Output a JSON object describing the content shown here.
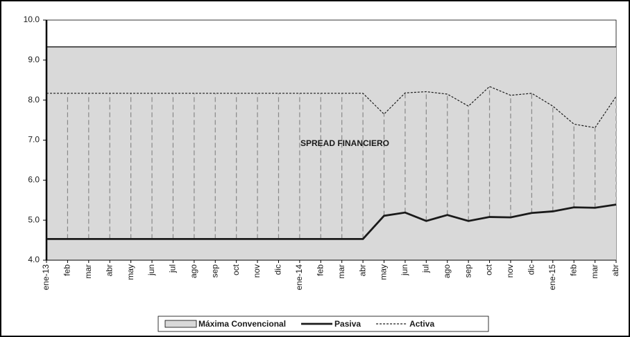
{
  "chart_data": {
    "type": "line",
    "annotation": "SPREAD FINANCIERO",
    "categories": [
      "ene-13",
      "feb",
      "mar",
      "abr",
      "may",
      "jun",
      "jul",
      "ago",
      "sep",
      "oct",
      "nov",
      "dic",
      "ene-14",
      "feb",
      "mar",
      "abr",
      "may",
      "jun",
      "jul",
      "ago",
      "sep",
      "oct",
      "nov",
      "dic",
      "ene-15",
      "feb",
      "mar",
      "abr"
    ],
    "series": [
      {
        "name": "Máxima Convencional",
        "color": "#d9d9d9",
        "style": "area",
        "values": [
          9.33,
          9.33,
          9.33,
          9.33,
          9.33,
          9.33,
          9.33,
          9.33,
          9.33,
          9.33,
          9.33,
          9.33,
          9.33,
          9.33,
          9.33,
          9.33,
          9.33,
          9.33,
          9.33,
          9.33,
          9.33,
          9.33,
          9.33,
          9.33,
          9.33,
          9.33,
          9.33,
          9.33
        ]
      },
      {
        "name": "Pasiva",
        "color": "#1a1a1a",
        "style": "solid",
        "values": [
          4.53,
          4.53,
          4.53,
          4.53,
          4.53,
          4.53,
          4.53,
          4.53,
          4.53,
          4.53,
          4.53,
          4.53,
          4.53,
          4.53,
          4.53,
          4.53,
          5.11,
          5.19,
          4.98,
          5.13,
          4.98,
          5.08,
          5.07,
          5.18,
          5.22,
          5.32,
          5.31,
          5.39
        ]
      },
      {
        "name": "Activa",
        "color": "#1a1a1a",
        "style": "dashed",
        "values": [
          8.17,
          8.17,
          8.17,
          8.17,
          8.17,
          8.17,
          8.17,
          8.17,
          8.17,
          8.17,
          8.17,
          8.17,
          8.17,
          8.17,
          8.17,
          8.17,
          7.65,
          8.18,
          8.21,
          8.15,
          7.85,
          8.34,
          8.12,
          8.17,
          7.85,
          7.4,
          7.31,
          8.09
        ]
      }
    ],
    "ylim": [
      4,
      10
    ],
    "yticks": [
      {
        "value": 4,
        "label": "4.0"
      },
      {
        "value": 5,
        "label": "5.0"
      },
      {
        "value": 6,
        "label": "6.0"
      },
      {
        "value": 7,
        "label": "7.0"
      },
      {
        "value": 8,
        "label": "8.0"
      },
      {
        "value": 9,
        "label": "9.0"
      },
      {
        "value": 10,
        "label": "10.0"
      }
    ],
    "legend": "bottom"
  }
}
